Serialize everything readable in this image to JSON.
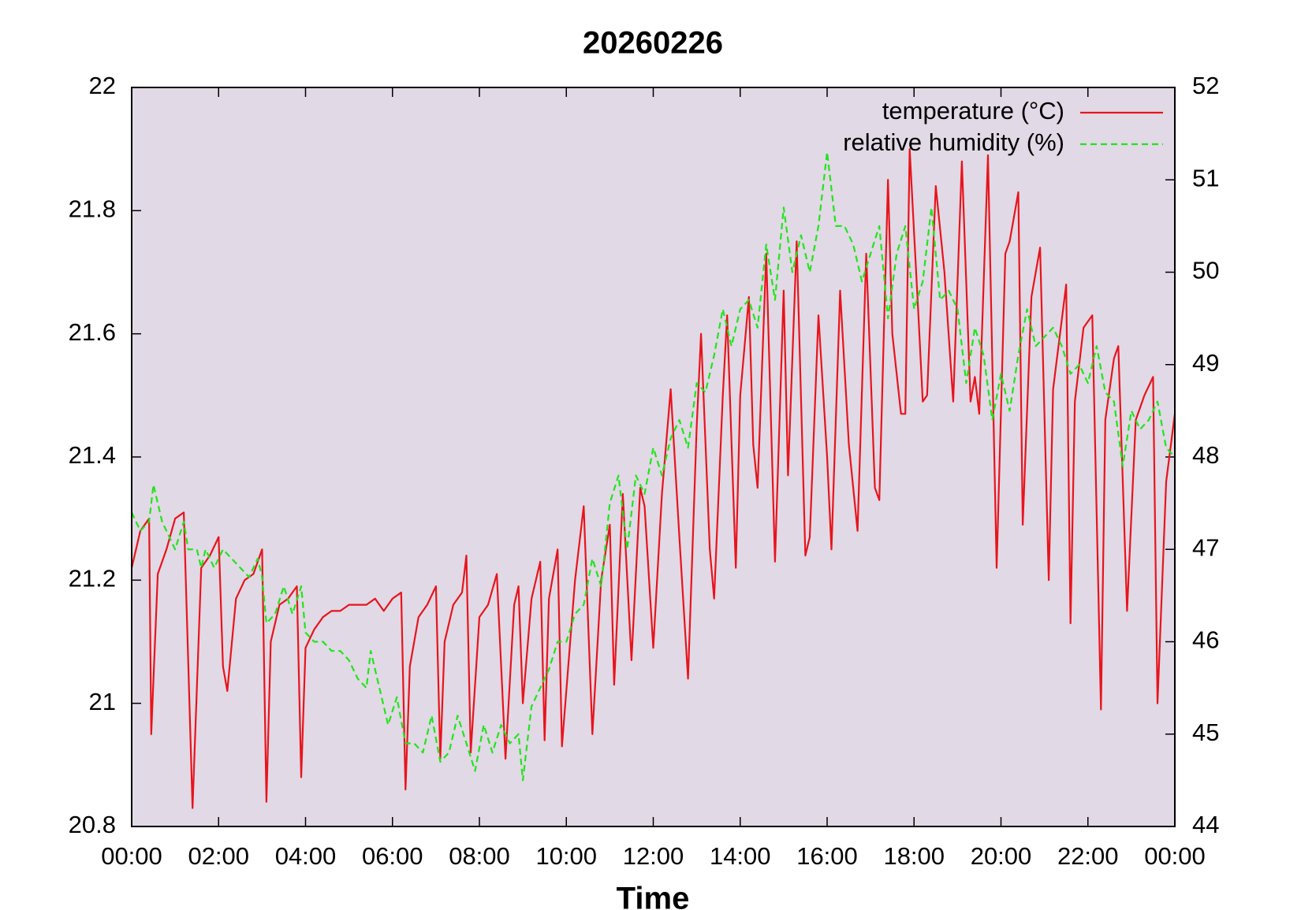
{
  "chart_data": {
    "type": "line",
    "title": "20260226",
    "xlabel": "Time",
    "legend": "upper right",
    "background": "#e1d9e5",
    "xlim": [
      0,
      24
    ],
    "xticks": [
      {
        "value": 0,
        "label": "00:00"
      },
      {
        "value": 2,
        "label": "02:00"
      },
      {
        "value": 4,
        "label": "04:00"
      },
      {
        "value": 6,
        "label": "06:00"
      },
      {
        "value": 8,
        "label": "08:00"
      },
      {
        "value": 10,
        "label": "10:00"
      },
      {
        "value": 12,
        "label": "12:00"
      },
      {
        "value": 14,
        "label": "14:00"
      },
      {
        "value": 16,
        "label": "16:00"
      },
      {
        "value": 18,
        "label": "18:00"
      },
      {
        "value": 20,
        "label": "20:00"
      },
      {
        "value": 22,
        "label": "22:00"
      },
      {
        "value": 24,
        "label": "00:00"
      }
    ],
    "ylim": [
      20.8,
      22
    ],
    "yticks": [
      20.8,
      21,
      21.2,
      21.4,
      21.6,
      21.8,
      22
    ],
    "y2lim": [
      44,
      52
    ],
    "y2ticks": [
      44,
      45,
      46,
      47,
      48,
      49,
      50,
      51,
      52
    ],
    "series": [
      {
        "name": "temperature (°C)",
        "color": "#e8141c",
        "style": "solid",
        "axis": "y",
        "x": [
          0.0,
          0.2,
          0.4,
          0.45,
          0.6,
          0.8,
          1.0,
          1.2,
          1.4,
          1.6,
          1.8,
          2.0,
          2.1,
          2.2,
          2.4,
          2.6,
          2.8,
          3.0,
          3.1,
          3.2,
          3.4,
          3.6,
          3.8,
          3.9,
          4.0,
          4.2,
          4.4,
          4.6,
          4.8,
          5.0,
          5.2,
          5.4,
          5.6,
          5.8,
          6.0,
          6.2,
          6.3,
          6.4,
          6.6,
          6.8,
          7.0,
          7.1,
          7.2,
          7.4,
          7.6,
          7.7,
          7.8,
          8.0,
          8.2,
          8.4,
          8.6,
          8.8,
          8.9,
          9.0,
          9.2,
          9.4,
          9.5,
          9.6,
          9.8,
          9.9,
          10.2,
          10.4,
          10.6,
          10.8,
          11.0,
          11.1,
          11.3,
          11.5,
          11.7,
          11.8,
          12.0,
          12.2,
          12.4,
          12.6,
          12.8,
          13.0,
          13.1,
          13.3,
          13.4,
          13.6,
          13.7,
          13.9,
          14.0,
          14.2,
          14.3,
          14.4,
          14.6,
          14.8,
          15.0,
          15.1,
          15.3,
          15.5,
          15.6,
          15.8,
          16.0,
          16.1,
          16.3,
          16.5,
          16.7,
          16.9,
          17.1,
          17.2,
          17.4,
          17.5,
          17.7,
          17.8,
          17.9,
          18.1,
          18.2,
          18.3,
          18.5,
          18.7,
          18.9,
          19.1,
          19.3,
          19.4,
          19.5,
          19.7,
          19.9,
          20.1,
          20.2,
          20.4,
          20.5,
          20.7,
          20.9,
          21.1,
          21.2,
          21.5,
          21.6,
          21.7,
          21.9,
          22.1,
          22.3,
          22.4,
          22.6,
          22.7,
          22.9,
          23.1,
          23.3,
          23.5,
          23.6,
          23.8,
          24.0
        ],
        "values": [
          21.22,
          21.28,
          21.3,
          20.95,
          21.21,
          21.25,
          21.3,
          21.31,
          20.83,
          21.22,
          21.24,
          21.27,
          21.06,
          21.02,
          21.17,
          21.2,
          21.21,
          21.25,
          20.84,
          21.1,
          21.16,
          21.17,
          21.19,
          20.88,
          21.09,
          21.12,
          21.14,
          21.15,
          21.15,
          21.16,
          21.16,
          21.16,
          21.17,
          21.15,
          21.17,
          21.18,
          20.86,
          21.06,
          21.14,
          21.16,
          21.19,
          20.91,
          21.1,
          21.16,
          21.18,
          21.24,
          20.92,
          21.14,
          21.16,
          21.21,
          20.91,
          21.16,
          21.19,
          21.0,
          21.17,
          21.23,
          20.94,
          21.17,
          21.25,
          20.93,
          21.2,
          21.32,
          20.95,
          21.2,
          21.29,
          21.03,
          21.34,
          21.07,
          21.35,
          21.32,
          21.09,
          21.34,
          21.51,
          21.27,
          21.04,
          21.45,
          21.6,
          21.25,
          21.17,
          21.5,
          21.63,
          21.22,
          21.5,
          21.66,
          21.42,
          21.35,
          21.73,
          21.23,
          21.67,
          21.37,
          21.75,
          21.24,
          21.27,
          21.63,
          21.4,
          21.25,
          21.67,
          21.42,
          21.28,
          21.73,
          21.35,
          21.33,
          21.85,
          21.6,
          21.47,
          21.47,
          21.9,
          21.63,
          21.49,
          21.5,
          21.84,
          21.7,
          21.49,
          21.88,
          21.49,
          21.53,
          21.47,
          21.89,
          21.22,
          21.73,
          21.75,
          21.83,
          21.29,
          21.66,
          21.74,
          21.2,
          21.51,
          21.68,
          21.13,
          21.49,
          21.61,
          21.63,
          20.99,
          21.46,
          21.56,
          21.58,
          21.15,
          21.46,
          21.5,
          21.53,
          21.0,
          21.36,
          21.47
        ]
      },
      {
        "name": "relative humidity (%)",
        "color": "#22e41c",
        "style": "dashed",
        "axis": "y2",
        "x": [
          0.0,
          0.2,
          0.4,
          0.5,
          0.7,
          0.9,
          1.0,
          1.2,
          1.3,
          1.5,
          1.6,
          1.7,
          1.9,
          2.1,
          2.3,
          2.5,
          2.7,
          2.9,
          3.0,
          3.1,
          3.3,
          3.5,
          3.7,
          3.9,
          4.0,
          4.2,
          4.4,
          4.6,
          4.8,
          5.0,
          5.2,
          5.4,
          5.5,
          5.7,
          5.9,
          6.1,
          6.3,
          6.5,
          6.7,
          6.9,
          7.1,
          7.3,
          7.5,
          7.7,
          7.9,
          8.1,
          8.3,
          8.5,
          8.7,
          8.9,
          9.0,
          9.2,
          9.4,
          9.6,
          9.8,
          10.0,
          10.2,
          10.4,
          10.6,
          10.8,
          11.0,
          11.2,
          11.4,
          11.6,
          11.8,
          12.0,
          12.2,
          12.4,
          12.6,
          12.8,
          13.0,
          13.2,
          13.4,
          13.6,
          13.8,
          14.0,
          14.2,
          14.4,
          14.6,
          14.8,
          15.0,
          15.2,
          15.4,
          15.6,
          15.8,
          16.0,
          16.2,
          16.4,
          16.6,
          16.8,
          17.0,
          17.2,
          17.4,
          17.6,
          17.8,
          18.0,
          18.2,
          18.4,
          18.6,
          18.8,
          19.0,
          19.2,
          19.4,
          19.6,
          19.8,
          20.0,
          20.2,
          20.4,
          20.6,
          20.8,
          21.0,
          21.2,
          21.4,
          21.6,
          21.8,
          22.0,
          22.2,
          22.4,
          22.6,
          22.8,
          23.0,
          23.2,
          23.4,
          23.6,
          23.8,
          24.0
        ],
        "values": [
          47.4,
          47.2,
          47.3,
          47.7,
          47.3,
          47.1,
          47.0,
          47.3,
          47.0,
          47.0,
          46.8,
          47.0,
          46.8,
          47.0,
          46.9,
          46.8,
          46.7,
          46.9,
          46.7,
          46.2,
          46.3,
          46.6,
          46.3,
          46.6,
          46.1,
          46.0,
          46.0,
          45.9,
          45.9,
          45.8,
          45.6,
          45.5,
          45.9,
          45.5,
          45.1,
          45.4,
          44.9,
          44.9,
          44.8,
          45.2,
          44.7,
          44.8,
          45.2,
          44.9,
          44.6,
          45.1,
          44.8,
          45.1,
          44.9,
          45.0,
          44.5,
          45.3,
          45.5,
          45.7,
          46.0,
          46.0,
          46.3,
          46.4,
          46.9,
          46.6,
          47.5,
          47.8,
          47.0,
          47.8,
          47.6,
          48.1,
          47.8,
          48.2,
          48.4,
          48.1,
          48.8,
          48.7,
          49.1,
          49.6,
          49.2,
          49.6,
          49.7,
          49.4,
          50.3,
          49.7,
          50.7,
          50.0,
          50.4,
          50.0,
          50.5,
          51.3,
          50.5,
          50.5,
          50.3,
          49.9,
          50.2,
          50.5,
          49.5,
          50.2,
          50.5,
          49.6,
          49.9,
          50.7,
          49.7,
          49.8,
          49.6,
          48.8,
          49.4,
          49.1,
          48.4,
          48.9,
          48.5,
          49.1,
          49.6,
          49.2,
          49.3,
          49.4,
          49.2,
          48.9,
          49.0,
          48.8,
          49.2,
          48.7,
          48.6,
          47.9,
          48.5,
          48.3,
          48.4,
          48.6,
          48.1,
          48.0
        ]
      }
    ]
  }
}
